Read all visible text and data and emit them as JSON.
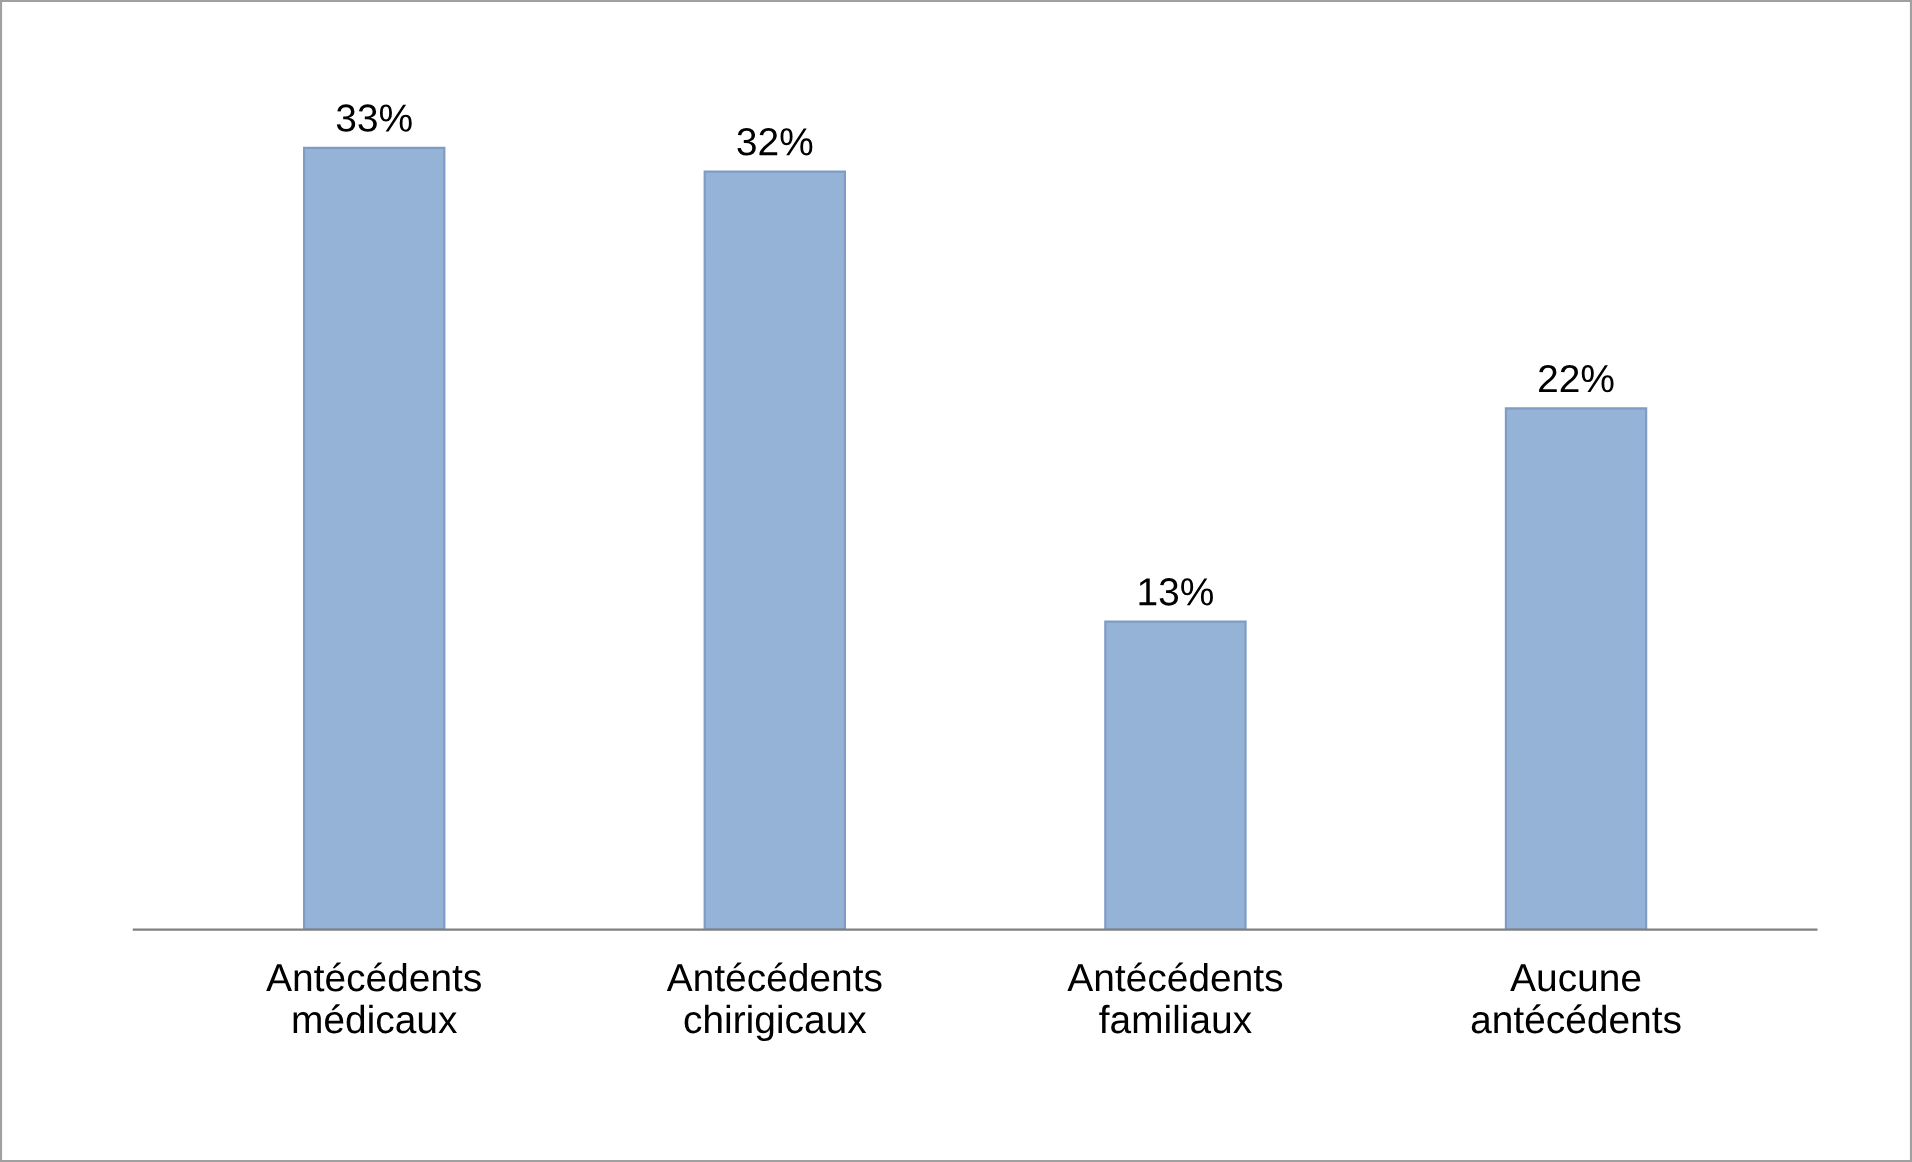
{
  "chart_data": {
    "type": "bar",
    "categories": [
      "Antécédents\nmédicaux",
      "Antécédents\nchirigicaux",
      "Antécédents\nfamiliaux",
      "Aucune\nantécédents"
    ],
    "values": [
      33,
      32,
      13,
      22
    ],
    "value_labels": [
      "33%",
      "32%",
      "13%",
      "22%"
    ],
    "color": "#95b3d7",
    "grid": false,
    "legend": false
  }
}
